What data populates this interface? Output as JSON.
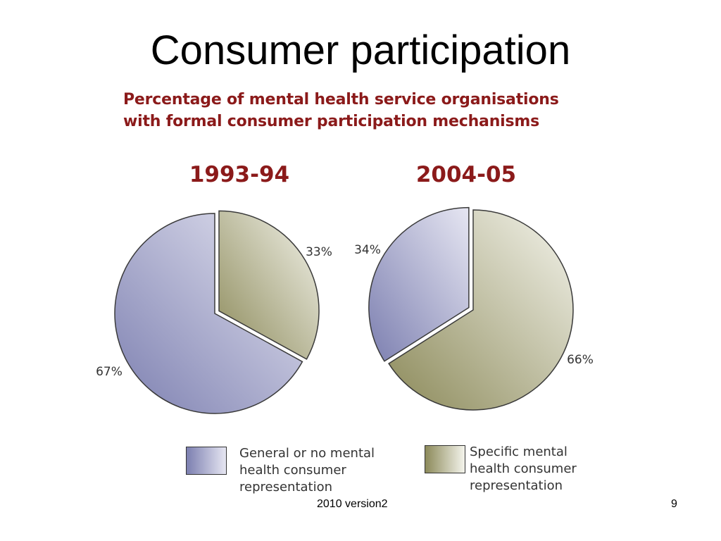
{
  "slide": {
    "title": "Consumer participation",
    "footer": "2010 version2",
    "page_number": "9"
  },
  "colors": {
    "title_red": "#8b1a1a",
    "general_series": "#7c7fb0",
    "general_series_light": "#e6e6f2",
    "specific_series": "#8c8a5a",
    "specific_series_light": "#f4f4ec"
  },
  "chart_data": {
    "type": "pie",
    "title_lines": [
      "Percentage of mental health service organisations",
      "with formal consumer participation mechanisms"
    ],
    "pies": [
      {
        "label": "1993-94",
        "slices": [
          {
            "series": 0,
            "value": 67,
            "label": "67%"
          },
          {
            "series": 1,
            "value": 33,
            "label": "33%"
          }
        ]
      },
      {
        "label": "2004-05",
        "slices": [
          {
            "series": 0,
            "value": 34,
            "label": "34%"
          },
          {
            "series": 1,
            "value": 66,
            "label": "66%"
          }
        ]
      }
    ],
    "legend": [
      {
        "lines": [
          "General or no mental",
          "health consumer",
          "representation"
        ]
      },
      {
        "lines": [
          "Specific mental",
          "health consumer",
          "representation"
        ]
      }
    ],
    "legend_position": "bottom"
  }
}
